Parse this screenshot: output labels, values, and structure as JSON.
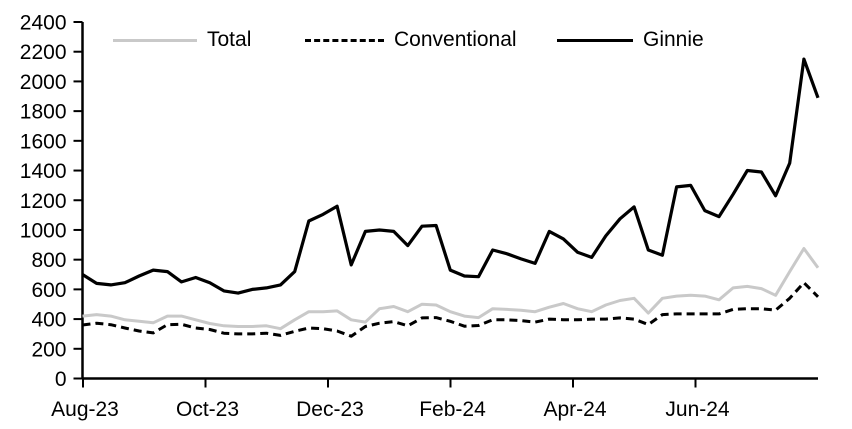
{
  "chart_data": {
    "type": "line",
    "title": "",
    "xlabel": "",
    "ylabel": "",
    "ylim": [
      0,
      2400
    ],
    "y_step": 200,
    "grid": false,
    "legend_position": "top",
    "x_tick_labels": [
      "Aug-23",
      "Oct-23",
      "Dec-23",
      "Feb-24",
      "Apr-24",
      "Jun-24"
    ],
    "y_tick_labels": [
      "0",
      "200",
      "400",
      "600",
      "800",
      "1000",
      "1200",
      "1400",
      "1600",
      "1800",
      "2000",
      "2200",
      "2400"
    ],
    "series": [
      {
        "name": "Total",
        "color": "#c9c9c9",
        "style": "solid",
        "values": [
          420,
          430,
          420,
          395,
          385,
          375,
          420,
          420,
          395,
          370,
          355,
          350,
          350,
          355,
          335,
          395,
          450,
          450,
          455,
          395,
          380,
          470,
          485,
          450,
          500,
          495,
          450,
          420,
          410,
          470,
          465,
          460,
          450,
          480,
          505,
          470,
          450,
          495,
          525,
          540,
          440,
          540,
          555,
          560,
          555,
          530,
          610,
          620,
          605,
          560,
          720,
          875,
          745
        ]
      },
      {
        "name": "Conventional",
        "color": "#000000",
        "style": "dashed",
        "values": [
          360,
          372,
          362,
          340,
          320,
          307,
          362,
          365,
          340,
          330,
          305,
          300,
          300,
          305,
          290,
          318,
          340,
          335,
          320,
          285,
          350,
          372,
          383,
          355,
          408,
          410,
          385,
          352,
          357,
          395,
          395,
          390,
          380,
          400,
          395,
          395,
          400,
          400,
          408,
          400,
          363,
          430,
          435,
          435,
          435,
          435,
          465,
          470,
          470,
          460,
          540,
          645,
          550
        ]
      },
      {
        "name": "Ginnie",
        "color": "#000000",
        "style": "solid",
        "values": [
          700,
          640,
          630,
          645,
          690,
          730,
          720,
          650,
          680,
          645,
          590,
          575,
          600,
          610,
          630,
          720,
          1060,
          1105,
          1160,
          765,
          990,
          1000,
          990,
          895,
          1025,
          1030,
          730,
          690,
          685,
          865,
          840,
          805,
          775,
          990,
          940,
          850,
          815,
          960,
          1075,
          1155,
          865,
          830,
          1290,
          1300,
          1130,
          1090,
          1240,
          1400,
          1390,
          1230,
          1450,
          2150,
          1890
        ]
      }
    ]
  }
}
